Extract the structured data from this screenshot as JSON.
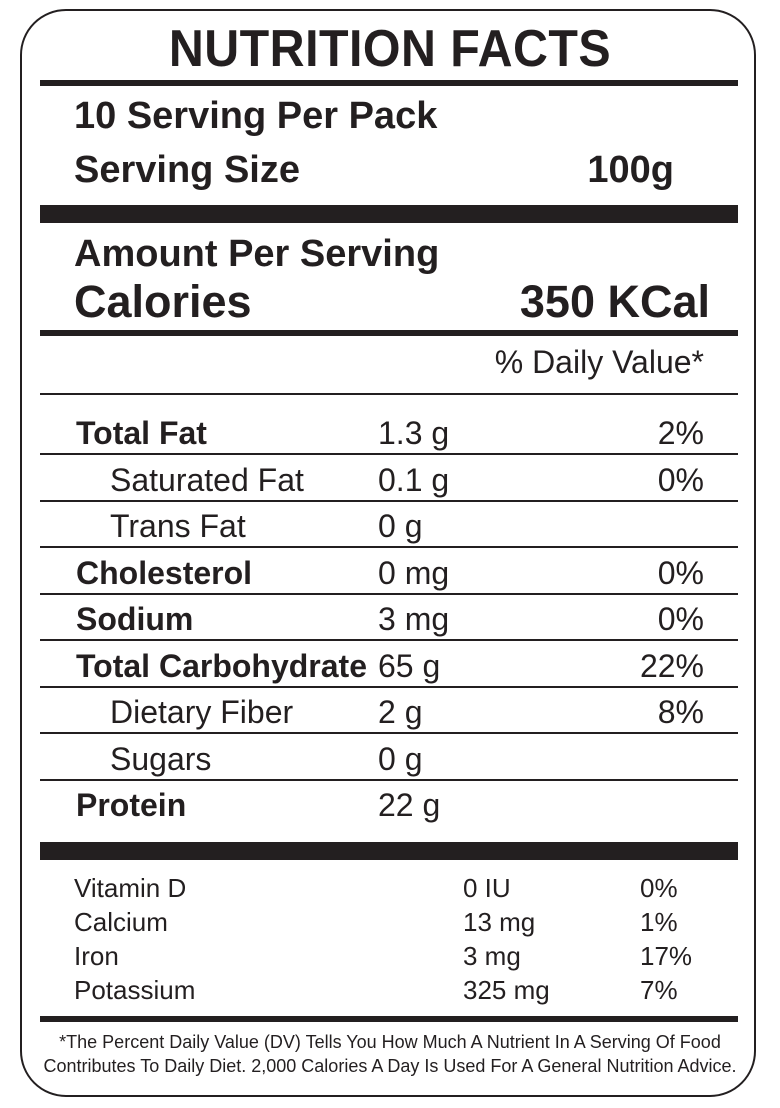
{
  "title": "NUTRITION FACTS",
  "servings_per_pack": "10 Serving Per Pack",
  "serving_size_label": "Serving Size",
  "serving_size_value": "100g",
  "amount_per_serving": "Amount Per Serving",
  "calories_label": "Calories",
  "calories_value": "350 KCal",
  "daily_value_header": "% Daily Value*",
  "nutrients": [
    {
      "name": "Total Fat",
      "amount": "1.3 g",
      "dv": "2%"
    },
    {
      "name": "Saturated Fat",
      "amount": "0.1 g",
      "dv": "0%"
    },
    {
      "name": "Trans Fat",
      "amount": "0 g",
      "dv": ""
    },
    {
      "name": "Cholesterol",
      "amount": "0 mg",
      "dv": "0%"
    },
    {
      "name": "Sodium",
      "amount": "3 mg",
      "dv": "0%"
    },
    {
      "name": "Total Carbohydrate",
      "amount": "65 g",
      "dv": "22%"
    },
    {
      "name": "Dietary Fiber",
      "amount": "2 g",
      "dv": "8%"
    },
    {
      "name": "Sugars",
      "amount": "0 g",
      "dv": ""
    },
    {
      "name": "Protein",
      "amount": "22 g",
      "dv": ""
    }
  ],
  "vitamins": [
    {
      "name": "Vitamin D",
      "amount": "0 IU",
      "dv": "0%"
    },
    {
      "name": "Calcium",
      "amount": "13 mg",
      "dv": "1%"
    },
    {
      "name": "Iron",
      "amount": "3 mg",
      "dv": "17%"
    },
    {
      "name": "Potassium",
      "amount": "325 mg",
      "dv": "7%"
    }
  ],
  "footnote_line1": "*The Percent Daily Value (DV) Tells You How Much A Nutrient In A Serving Of Food",
  "footnote_line2": "Contributes To Daily Diet. 2,000 Calories A Day Is Used For A General Nutrition Advice.",
  "colors": {
    "ink": "#231f20",
    "background": "#ffffff"
  }
}
